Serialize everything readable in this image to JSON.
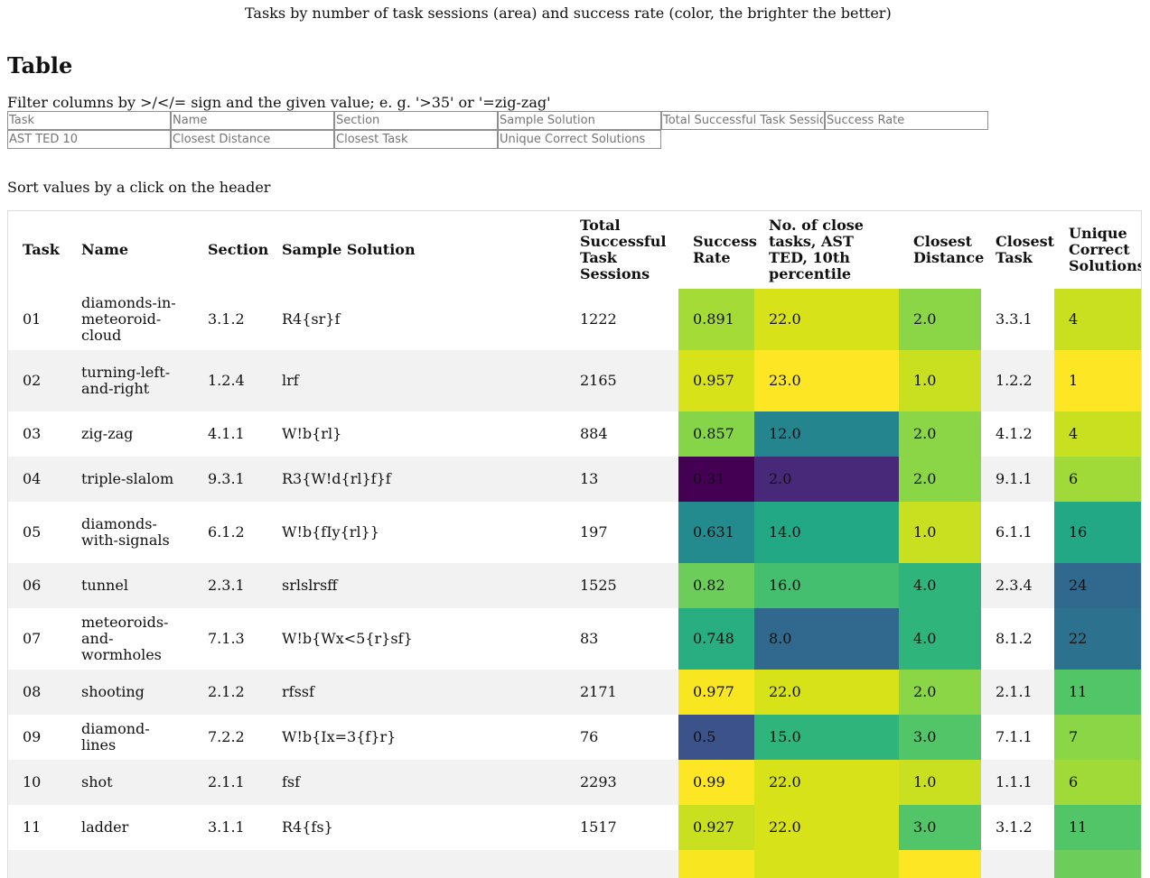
{
  "caption": "Tasks by number of task sessions (area) and success rate (color, the brighter the better)",
  "heading": "Table",
  "filter_note": "Filter columns by >/</= sign and the given value; e. g. '>35' or '=zig-zag'",
  "filters": [
    "Task",
    "Name",
    "Section",
    "Sample Solution",
    "Total Successful Task Sessions",
    "Success Rate",
    "AST TED 10",
    "Closest Distance",
    "Closest Task",
    "Unique Correct Solutions"
  ],
  "sort_note": "Sort values by a click on the header",
  "table": {
    "headers": [
      "Task",
      "Name",
      "Section",
      "Sample Solution",
      "Total Successful Task Sessions",
      "Success Rate",
      "No. of close tasks, AST TED, 10th percentile",
      "Closest Distance",
      "Closest Task",
      "Unique Correct Solutions"
    ],
    "rows": [
      {
        "task": "01",
        "name": "diamonds-in-meteoroid-cloud",
        "section": "3.1.2",
        "solution": "R4{sr}f",
        "sessions": "1222",
        "success_rate": "0.891",
        "ast_ted": "22.0",
        "closest_distance": "2.0",
        "closest_task": "3.3.1",
        "unique": "4",
        "colors": {
          "success_rate": "#a5db36",
          "ast_ted": "#d8e219",
          "closest_distance": "#8bd646",
          "unique": "#c8e020"
        }
      },
      {
        "task": "02",
        "name": "turning-left-and-right",
        "section": "1.2.4",
        "solution": "lrf",
        "sessions": "2165",
        "success_rate": "0.957",
        "ast_ted": "23.0",
        "closest_distance": "1.0",
        "closest_task": "1.2.2",
        "unique": "1",
        "colors": {
          "success_rate": "#d8e219",
          "ast_ted": "#fde725",
          "closest_distance": "#c8e020",
          "unique": "#fde725"
        }
      },
      {
        "task": "03",
        "name": "zig-zag",
        "section": "4.1.1",
        "solution": "W!b{rl}",
        "sessions": "884",
        "success_rate": "0.857",
        "ast_ted": "12.0",
        "closest_distance": "2.0",
        "closest_task": "4.1.2",
        "unique": "4",
        "colors": {
          "success_rate": "#86d549",
          "ast_ted": "#25858e",
          "closest_distance": "#8bd646",
          "unique": "#c8e020"
        }
      },
      {
        "task": "04",
        "name": "triple-slalom",
        "section": "9.3.1",
        "solution": "R3{W!d{rl}f}f",
        "sessions": "13",
        "success_rate": "0.31",
        "ast_ted": "2.0",
        "closest_distance": "2.0",
        "closest_task": "9.1.1",
        "unique": "6",
        "colors": {
          "success_rate": "#440154",
          "ast_ted": "#482878",
          "closest_distance": "#8bd646",
          "unique": "#a0da39"
        }
      },
      {
        "task": "05",
        "name": "diamonds-with-signals",
        "section": "6.1.2",
        "solution": "W!b{fIy{rl}}",
        "sessions": "197",
        "success_rate": "0.631",
        "ast_ted": "14.0",
        "closest_distance": "1.0",
        "closest_task": "6.1.1",
        "unique": "16",
        "colors": {
          "success_rate": "#238a8d",
          "ast_ted": "#22a884",
          "closest_distance": "#c8e020",
          "unique": "#22a884"
        }
      },
      {
        "task": "06",
        "name": "tunnel",
        "section": "2.3.1",
        "solution": "srlslrsff",
        "sessions": "1525",
        "success_rate": "0.82",
        "ast_ted": "16.0",
        "closest_distance": "4.0",
        "closest_task": "2.3.4",
        "unique": "24",
        "colors": {
          "success_rate": "#6ccd5a",
          "ast_ted": "#44bf70",
          "closest_distance": "#2fb47c",
          "unique": "#31688e"
        }
      },
      {
        "task": "07",
        "name": "meteoroids-and-wormholes",
        "section": "7.1.3",
        "solution": "W!b{Wx<5{r}sf}",
        "sessions": "83",
        "success_rate": "0.748",
        "ast_ted": "8.0",
        "closest_distance": "4.0",
        "closest_task": "8.1.2",
        "unique": "22",
        "colors": {
          "success_rate": "#28ae80",
          "ast_ted": "#31688e",
          "closest_distance": "#2fb47c",
          "unique": "#2c728e"
        }
      },
      {
        "task": "08",
        "name": "shooting",
        "section": "2.1.2",
        "solution": "rfssf",
        "sessions": "2171",
        "success_rate": "0.977",
        "ast_ted": "22.0",
        "closest_distance": "2.0",
        "closest_task": "2.1.1",
        "unique": "11",
        "colors": {
          "success_rate": "#f8e621",
          "ast_ted": "#d8e219",
          "closest_distance": "#8bd646",
          "unique": "#52c569"
        }
      },
      {
        "task": "09",
        "name": "diamond-lines",
        "section": "7.2.2",
        "solution": "W!b{Ix=3{f}r}",
        "sessions": "76",
        "success_rate": "0.5",
        "ast_ted": "15.0",
        "closest_distance": "3.0",
        "closest_task": "7.1.1",
        "unique": "7",
        "colors": {
          "success_rate": "#3b528b",
          "ast_ted": "#2fb47c",
          "closest_distance": "#52c569",
          "unique": "#8bd646"
        }
      },
      {
        "task": "10",
        "name": "shot",
        "section": "2.1.1",
        "solution": "fsf",
        "sessions": "2293",
        "success_rate": "0.99",
        "ast_ted": "22.0",
        "closest_distance": "1.0",
        "closest_task": "1.1.1",
        "unique": "6",
        "colors": {
          "success_rate": "#fde725",
          "ast_ted": "#d8e219",
          "closest_distance": "#c8e020",
          "unique": "#a0da39"
        }
      },
      {
        "task": "11",
        "name": "ladder",
        "section": "3.1.1",
        "solution": "R4{fs}",
        "sessions": "1517",
        "success_rate": "0.927",
        "ast_ted": "22.0",
        "closest_distance": "3.0",
        "closest_task": "3.1.2",
        "unique": "11",
        "colors": {
          "success_rate": "#c8e020",
          "ast_ted": "#d8e219",
          "closest_distance": "#52c569",
          "unique": "#52c569"
        }
      },
      {
        "task": "",
        "name": "",
        "section": "",
        "solution": "",
        "sessions": "",
        "success_rate": "",
        "ast_ted": "",
        "closest_distance": "",
        "closest_task": "",
        "unique": "",
        "colors": {
          "success_rate": "#f8e621",
          "ast_ted": "#d8e219",
          "closest_distance": "#fde725",
          "unique": "#6ccd5a"
        }
      }
    ]
  }
}
